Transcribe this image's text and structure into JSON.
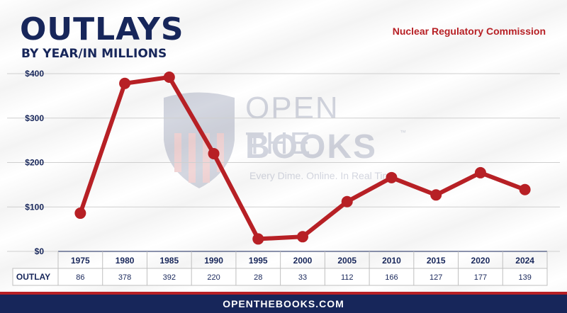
{
  "header": {
    "title": "OUTLAYS",
    "subtitle": "BY YEAR/IN MILLIONS",
    "agency": "Nuclear Regulatory Commission"
  },
  "watermark": {
    "line1": "OPEN THE",
    "line2": "BOOKS",
    "tm": "™",
    "tagline": "Every Dime. Online. In Real Time."
  },
  "footer": {
    "text": "OPENTHEBOOKS.COM"
  },
  "colors": {
    "navy": "#17265a",
    "red": "#b72025"
  },
  "chart_data": {
    "type": "line",
    "title": "OUTLAYS",
    "subtitle": "BY YEAR/IN MILLIONS",
    "categories": [
      "1975",
      "1980",
      "1985",
      "1990",
      "1995",
      "2000",
      "2005",
      "2010",
      "2015",
      "2020",
      "2024"
    ],
    "values": [
      86,
      378,
      392,
      220,
      28,
      33,
      112,
      166,
      127,
      177,
      139
    ],
    "ylim": [
      0,
      400
    ],
    "yticks": [
      "$0",
      "$100",
      "$200",
      "$300",
      "$400"
    ],
    "ytick_values": [
      0,
      100,
      200,
      300,
      400
    ],
    "table_row_label": "OUTLAY",
    "grid": true,
    "series_color": "#b72025"
  }
}
